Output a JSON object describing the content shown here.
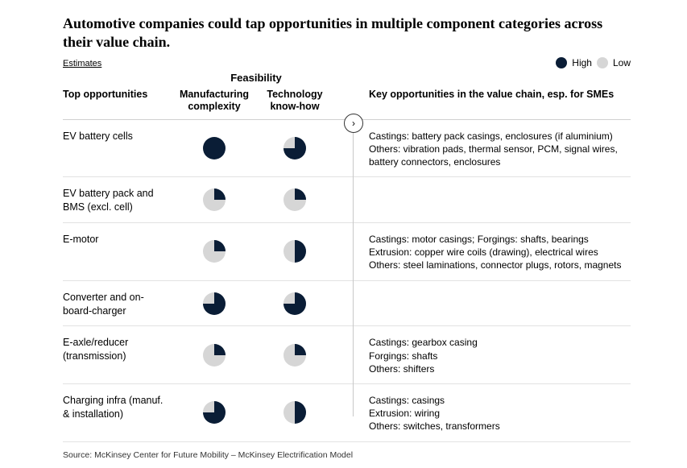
{
  "title": "Automotive companies could tap opportunities in multiple component categories across their value chain.",
  "subtitle": "Estimates",
  "legend": {
    "high": "High",
    "low": "Low"
  },
  "colors": {
    "dark": "#0a1d36",
    "light": "#d6d6d6",
    "border": "#d0d0d0",
    "row_border": "#e2e2e2",
    "background": "#ffffff",
    "text": "#000000"
  },
  "headers": {
    "opportunities": "Top opportunities",
    "feasibility": "Feasibility",
    "manuf": "Manufacturing complexity",
    "tech": "Technology know-how",
    "key": "Key opportunities in the value chain, esp. for SMEs"
  },
  "pie_style": {
    "radius": 14
  },
  "rows": [
    {
      "label": "EV battery cells",
      "manuf_fill": 1.0,
      "tech_fill": 0.75,
      "desc": "Castings: battery pack casings, enclosures (if aluminium)\nOthers: vibration pads, thermal sensor, PCM, signal wires, battery connectors, enclosures"
    },
    {
      "label": "EV battery pack and BMS (excl. cell)",
      "manuf_fill": 0.25,
      "tech_fill": 0.25,
      "desc": ""
    },
    {
      "label": "E-motor",
      "manuf_fill": 0.25,
      "tech_fill": 0.5,
      "desc": "Castings: motor casings; Forgings: shafts, bearings\nExtrusion: copper wire coils (drawing), electrical wires\nOthers: steel laminations, connector plugs, rotors, magnets"
    },
    {
      "label": "Converter and on-board-charger",
      "manuf_fill": 0.75,
      "tech_fill": 0.75,
      "desc": ""
    },
    {
      "label": "E-axle/reducer (transmission)",
      "manuf_fill": 0.25,
      "tech_fill": 0.25,
      "desc": "Castings: gearbox casing\nForgings: shafts\nOthers: shifters"
    },
    {
      "label": "Charging infra (manuf. & installation)",
      "manuf_fill": 0.75,
      "tech_fill": 0.5,
      "desc": "Castings: casings\nExtrusion: wiring\nOthers: switches, transformers"
    }
  ],
  "source": "Source: McKinsey Center for Future Mobility – McKinsey Electrification Model"
}
